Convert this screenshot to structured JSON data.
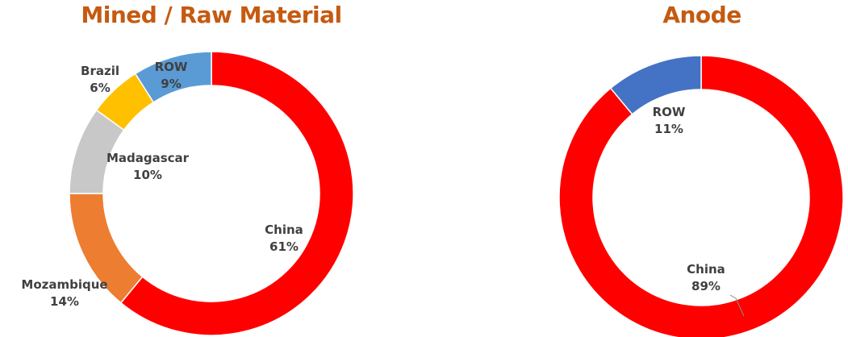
{
  "colors": {
    "title": "#C55A11",
    "label": "#404040",
    "slice_border": "#ffffff"
  },
  "chart_data": [
    {
      "type": "pie",
      "variant": "donut",
      "title": "Mined / Raw Material",
      "slices": [
        {
          "name": "China",
          "value": 61,
          "label": "61%",
          "color": "#FF0000"
        },
        {
          "name": "Mozambique",
          "value": 14,
          "label": "14%",
          "color": "#ED7D31"
        },
        {
          "name": "Madagascar",
          "value": 10,
          "label": "10%",
          "color": "#C8C8C8"
        },
        {
          "name": "Brazil",
          "value": 6,
          "label": "6%",
          "color": "#FFC000"
        },
        {
          "name": "ROW",
          "value": 9,
          "label": "9%",
          "color": "#5B9BD5"
        }
      ]
    },
    {
      "type": "pie",
      "variant": "donut",
      "title": "Anode",
      "slices": [
        {
          "name": "China",
          "value": 89,
          "label": "89%",
          "color": "#FF0000"
        },
        {
          "name": "ROW",
          "value": 11,
          "label": "11%",
          "color": "#4472C4"
        }
      ]
    }
  ]
}
